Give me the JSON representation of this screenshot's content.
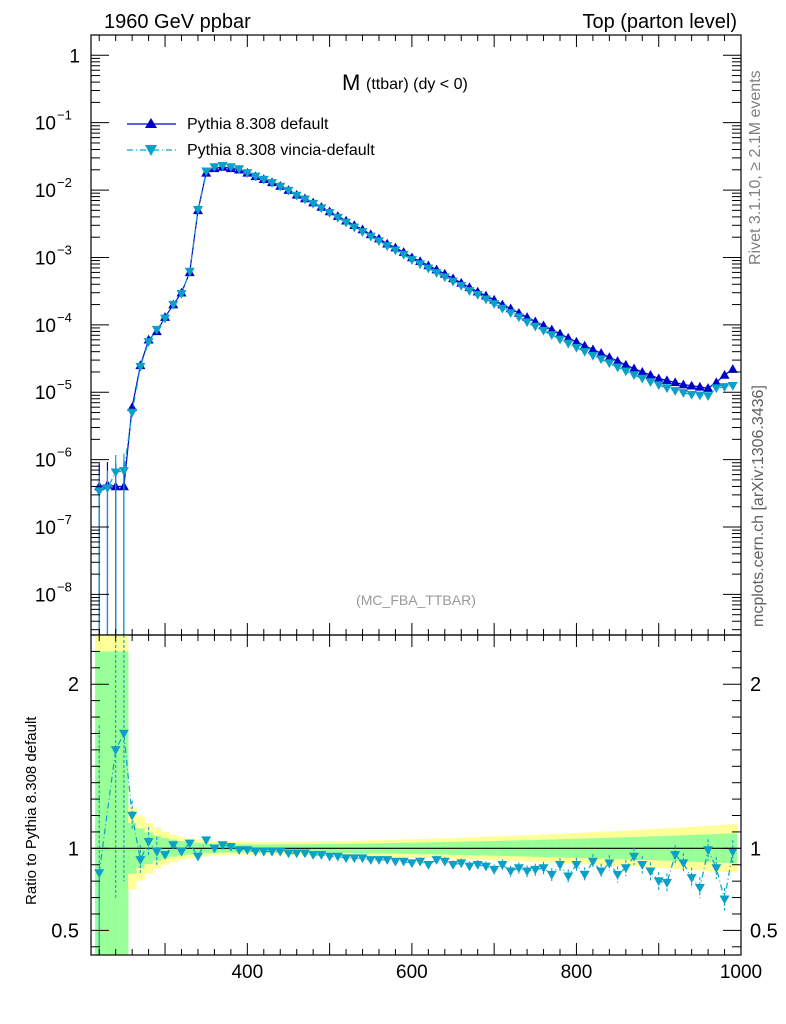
{
  "header": {
    "left": "1960 GeV ppbar",
    "right": "Top (parton level)"
  },
  "side": {
    "rivet": "Rivet 3.1.10, ≥ 2.1M events",
    "mcplots": "mcplots.cern.ch [arXiv:1306.3436]"
  },
  "colors": {
    "default": "#0000cc",
    "vincia": "#0aa0c8",
    "band_outer": "#ffff99",
    "band_inner": "#99ff99",
    "tag": "#999999"
  },
  "chart_data": [
    {
      "type": "line",
      "title_main": "M",
      "title_sub": "(ttbar) (dy < 0)",
      "tag": "(MC_FBA_TTBAR)",
      "yscale": "log",
      "xlim": [
        210,
        1000
      ],
      "ylim": [
        2.5e-09,
        2.0
      ],
      "x_ticks": [
        400,
        600,
        800,
        1000
      ],
      "y_ticks": [
        {
          "v": 1e-08,
          "base": "10",
          "exp": "−8"
        },
        {
          "v": 1e-07,
          "base": "10",
          "exp": "−7"
        },
        {
          "v": 1e-06,
          "base": "10",
          "exp": "−6"
        },
        {
          "v": 1e-05,
          "base": "10",
          "exp": "−5"
        },
        {
          "v": 0.0001,
          "base": "10",
          "exp": "−4"
        },
        {
          "v": 0.001,
          "base": "10",
          "exp": "−3"
        },
        {
          "v": 0.01,
          "base": "10",
          "exp": "−2"
        },
        {
          "v": 0.1,
          "base": "10",
          "exp": "−1"
        },
        {
          "v": 1,
          "base": "1",
          "exp": ""
        }
      ],
      "legend_position": "top-left",
      "series": [
        {
          "name": "Pythia 8.308 default",
          "marker": "triangle-up",
          "x": [
            220,
            230,
            240,
            250,
            260,
            270,
            280,
            290,
            300,
            310,
            320,
            330,
            340,
            350,
            360,
            370,
            380,
            390,
            400,
            410,
            420,
            430,
            440,
            450,
            460,
            470,
            480,
            490,
            500,
            510,
            520,
            530,
            540,
            550,
            560,
            570,
            580,
            590,
            600,
            610,
            620,
            630,
            640,
            650,
            660,
            670,
            680,
            690,
            700,
            710,
            720,
            730,
            740,
            750,
            760,
            770,
            780,
            790,
            800,
            810,
            820,
            830,
            840,
            850,
            860,
            870,
            880,
            890,
            900,
            910,
            920,
            930,
            940,
            950,
            960,
            970,
            980,
            990
          ],
          "y": [
            4e-07,
            4.2e-07,
            4e-07,
            4e-07,
            6e-06,
            2.5e-05,
            6e-05,
            8e-05,
            0.00013,
            0.0002,
            0.0003,
            0.0006,
            0.005,
            0.018,
            0.021,
            0.022,
            0.021,
            0.02,
            0.018,
            0.016,
            0.0145,
            0.013,
            0.0115,
            0.01,
            0.0085,
            0.0075,
            0.0065,
            0.0056,
            0.0048,
            0.0041,
            0.0035,
            0.003,
            0.0026,
            0.0022,
            0.0019,
            0.0016,
            0.0014,
            0.0012,
            0.001,
            0.00088,
            0.00076,
            0.00066,
            0.00057,
            0.00049,
            0.00042,
            0.00036,
            0.00031,
            0.00027,
            0.000235,
            0.0002,
            0.000175,
            0.00015,
            0.00013,
            0.000112,
            9.8e-05,
            8.5e-05,
            7.4e-05,
            6.4e-05,
            5.6e-05,
            4.9e-05,
            4.3e-05,
            3.8e-05,
            3.3e-05,
            2.9e-05,
            2.55e-05,
            2.25e-05,
            2e-05,
            1.8e-05,
            1.6e-05,
            1.5e-05,
            1.4e-05,
            1.3e-05,
            1.25e-05,
            1.2e-05,
            1.15e-05,
            1.4e-05,
            1.8e-05,
            2.2e-05
          ]
        },
        {
          "name": "Pythia 8.308 vincia-default",
          "marker": "triangle-down",
          "x": [
            220,
            230,
            240,
            250,
            260,
            270,
            280,
            290,
            300,
            310,
            320,
            330,
            340,
            350,
            360,
            370,
            380,
            390,
            400,
            410,
            420,
            430,
            440,
            450,
            460,
            470,
            480,
            490,
            500,
            510,
            520,
            530,
            540,
            550,
            560,
            570,
            580,
            590,
            600,
            610,
            620,
            630,
            640,
            650,
            660,
            670,
            680,
            690,
            700,
            710,
            720,
            730,
            740,
            750,
            760,
            770,
            780,
            790,
            800,
            810,
            820,
            830,
            840,
            850,
            860,
            870,
            880,
            890,
            900,
            910,
            920,
            930,
            940,
            950,
            960,
            970,
            980,
            990
          ],
          "y": [
            3.4e-07,
            3.8e-07,
            6.5e-07,
            6.8e-07,
            5e-06,
            2.4e-05,
            5.6e-05,
            8.5e-05,
            0.000125,
            0.0002,
            0.00029,
            0.00062,
            0.0051,
            0.019,
            0.022,
            0.023,
            0.022,
            0.0205,
            0.018,
            0.016,
            0.0143,
            0.0128,
            0.0113,
            0.0098,
            0.0083,
            0.0073,
            0.0063,
            0.0054,
            0.0046,
            0.0039,
            0.0033,
            0.0028,
            0.0024,
            0.00205,
            0.00175,
            0.00148,
            0.00128,
            0.0011,
            0.00092,
            0.0008,
            0.00069,
            0.00059,
            0.00051,
            0.00044,
            0.00038,
            0.00032,
            0.00028,
            0.00024,
            0.000205,
            0.000175,
            0.00015,
            0.00013,
            0.00011,
            9.5e-05,
            8.2e-05,
            7.1e-05,
            6.1e-05,
            5.3e-05,
            4.6e-05,
            4e-05,
            3.5e-05,
            3.1e-05,
            2.7e-05,
            2.35e-05,
            2.05e-05,
            1.8e-05,
            1.6e-05,
            1.42e-05,
            1.28e-05,
            1.15e-05,
            1.05e-05,
            9.8e-06,
            9.2e-06,
            9e-06,
            8.8e-06,
            1.15e-05,
            1.2e-05,
            1.25e-05
          ]
        }
      ]
    },
    {
      "type": "line",
      "ylabel": "Ratio to Pythia 8.308 default",
      "yscale": "linear",
      "xlim": [
        210,
        1000
      ],
      "ylim": [
        0.35,
        2.3
      ],
      "x_ticks": [
        400,
        600,
        800,
        1000
      ],
      "y_ticks": [
        0.5,
        1,
        2
      ],
      "series": [
        {
          "name": "Pythia 8.308 vincia-default",
          "marker": "triangle-down",
          "x": [
            220,
            240,
            250,
            260,
            270,
            280,
            290,
            300,
            310,
            320,
            330,
            340,
            350,
            360,
            370,
            380,
            390,
            400,
            410,
            420,
            430,
            440,
            450,
            460,
            470,
            480,
            490,
            500,
            510,
            520,
            530,
            540,
            550,
            560,
            570,
            580,
            590,
            600,
            610,
            620,
            630,
            640,
            650,
            660,
            670,
            680,
            690,
            700,
            710,
            720,
            730,
            740,
            750,
            760,
            770,
            780,
            790,
            800,
            810,
            820,
            830,
            840,
            850,
            860,
            870,
            880,
            890,
            900,
            910,
            920,
            930,
            940,
            950,
            960,
            970,
            980,
            990
          ],
          "y": [
            0.85,
            1.6,
            1.7,
            1.2,
            0.93,
            1.04,
            0.98,
            0.96,
            1.02,
            0.98,
            1.03,
            0.95,
            1.05,
            1.0,
            1.02,
            1.01,
            0.99,
            0.99,
            0.98,
            0.98,
            0.98,
            0.98,
            0.97,
            0.97,
            0.97,
            0.96,
            0.96,
            0.95,
            0.95,
            0.94,
            0.94,
            0.94,
            0.93,
            0.93,
            0.93,
            0.92,
            0.92,
            0.91,
            0.92,
            0.9,
            0.93,
            0.92,
            0.9,
            0.91,
            0.89,
            0.9,
            0.89,
            0.87,
            0.9,
            0.86,
            0.88,
            0.86,
            0.87,
            0.88,
            0.84,
            0.9,
            0.83,
            0.9,
            0.84,
            0.92,
            0.86,
            0.91,
            0.84,
            0.88,
            0.95,
            0.9,
            0.86,
            0.8,
            0.79,
            0.96,
            0.91,
            0.82,
            0.76,
            0.99,
            0.88,
            0.69,
            0.98
          ]
        }
      ]
    }
  ]
}
